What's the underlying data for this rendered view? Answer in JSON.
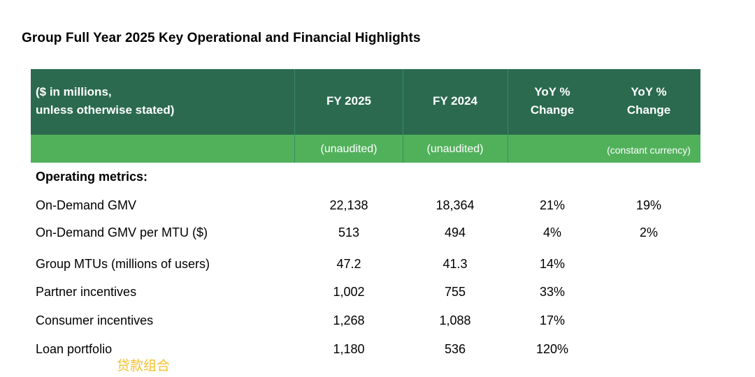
{
  "title": "Group Full Year 2025 Key Operational and Financial Highlights",
  "header": {
    "label_line1": "($ in millions,",
    "label_line2": "unless otherwise stated)",
    "fy2025": "FY 2025",
    "fy2024": "FY 2024",
    "yoy_line1": "YoY %",
    "yoy_line2": "Change",
    "yoycc_line1": "YoY %",
    "yoycc_line2": "Change"
  },
  "subheader": {
    "fy2025": "(unaudited)",
    "fy2024": "(unaudited)",
    "yoycc": "(constant currency)"
  },
  "section_label": "Operating metrics:",
  "rows": [
    {
      "label": "On-Demand GMV",
      "fy2025": "22,138",
      "fy2024": "18,364",
      "yoy": "21%",
      "yoy_cc": "19%"
    },
    {
      "label": "On-Demand GMV per MTU ($)",
      "fy2025": "513",
      "fy2024": "494",
      "yoy": "4%",
      "yoy_cc": "2%"
    },
    {
      "label": "Group MTUs (millions of users)",
      "fy2025": "47.2",
      "fy2024": "41.3",
      "yoy": "14%",
      "yoy_cc": ""
    },
    {
      "label": "Partner incentives",
      "fy2025": "1,002",
      "fy2024": "755",
      "yoy": "33%",
      "yoy_cc": ""
    },
    {
      "label": "Consumer incentives",
      "fy2025": "1,268",
      "fy2024": "1,088",
      "yoy": "17%",
      "yoy_cc": ""
    },
    {
      "label": "Loan portfolio",
      "fy2025": "1,180",
      "fy2024": "536",
      "yoy": "120%",
      "yoy_cc": ""
    }
  ],
  "annotation": "贷款组合",
  "colors": {
    "header": "#2b6a4f",
    "subheader": "#51b15b",
    "annotation": "#f2c12e"
  }
}
